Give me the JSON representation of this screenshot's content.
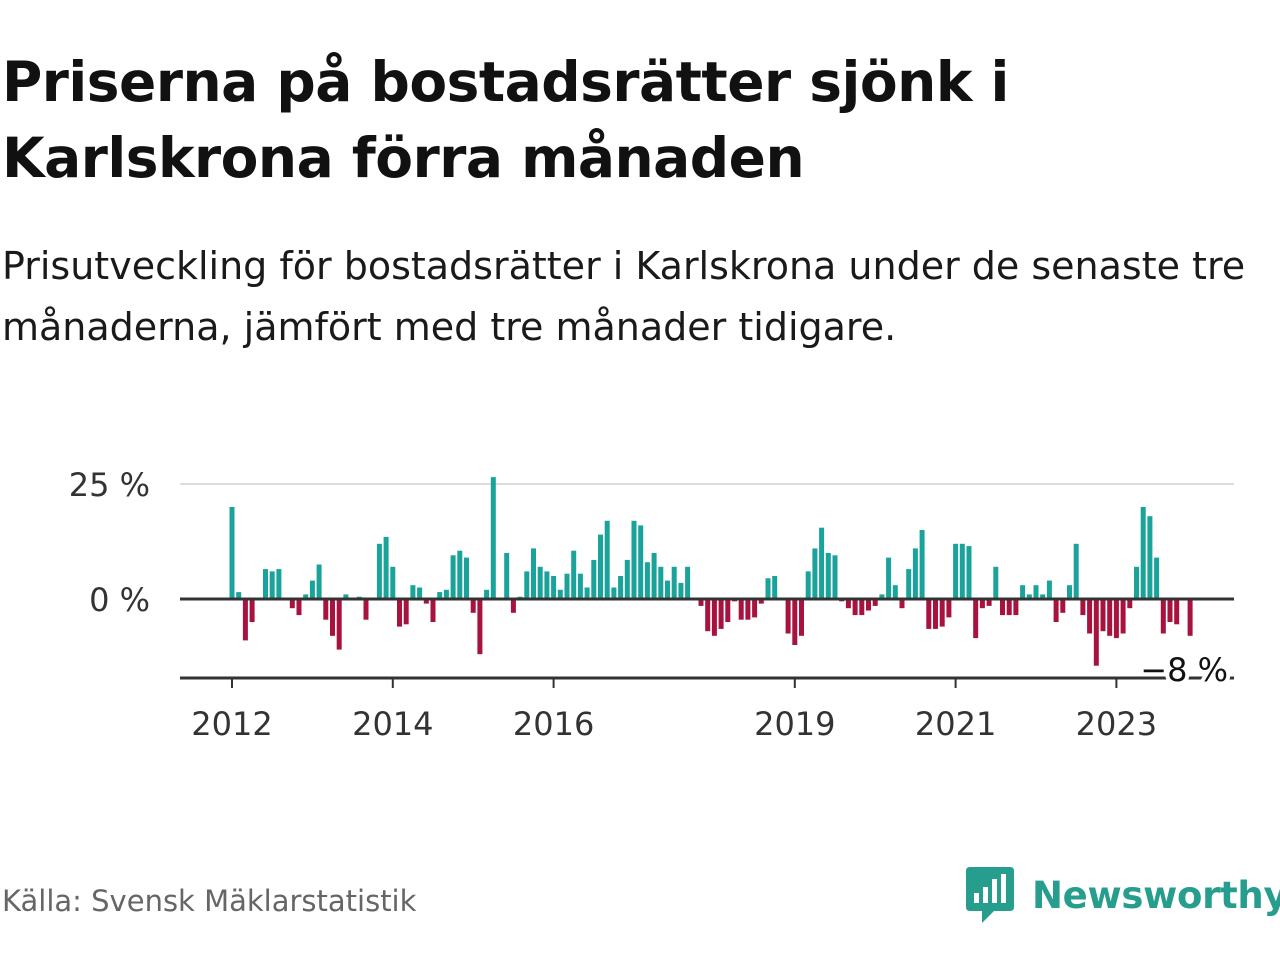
{
  "title": "Priserna på bostadsrätter sjönk i Karlskrona förra månaden",
  "subtitle": "Prisutveckling för bostadsrätter i Karlskrona under de senaste tre månaderna, jämfört med tre månader tidigare.",
  "source": "Källa: Svensk Mäklarstatistik",
  "logo": {
    "text": "Newsworthy",
    "icon": "newsworthy-bar-chart-icon",
    "color": "#279d8d"
  },
  "colors": {
    "positive": "#1aa39a",
    "negative": "#a8123e",
    "axis": "#333333",
    "grid": "#dddddd"
  },
  "chart_data": {
    "type": "bar",
    "title": "Priserna på bostadsrätter sjönk i Karlskrona förra månaden",
    "xlabel": "",
    "ylabel": "",
    "ylim": [
      -17,
      25
    ],
    "yticks": [
      {
        "value": 25,
        "label": "25 %"
      },
      {
        "value": 0,
        "label": "0 %"
      }
    ],
    "xticks": [
      {
        "index": 0,
        "label": "2012"
      },
      {
        "index": 24,
        "label": "2014"
      },
      {
        "index": 48,
        "label": "2016"
      },
      {
        "index": 84,
        "label": "2019"
      },
      {
        "index": 108,
        "label": "2021"
      },
      {
        "index": 132,
        "label": "2023"
      }
    ],
    "start": "2012-01",
    "frequency": "monthly",
    "grid": true,
    "annotation": {
      "text": "−8 %",
      "index": 142
    },
    "values": [
      20,
      1.5,
      -9,
      -5,
      0,
      6.5,
      6,
      6.5,
      0,
      -2,
      -3.5,
      1,
      4,
      7.5,
      -4.5,
      -8,
      -11,
      1,
      0,
      0.5,
      -4.5,
      0,
      12,
      13.5,
      7,
      -6,
      -5.5,
      3,
      2.5,
      -1,
      -5,
      1.5,
      2,
      9.5,
      10.5,
      9,
      -3,
      -12,
      2,
      26.5,
      0,
      10,
      -3,
      0.5,
      6,
      11,
      7,
      6,
      5,
      2,
      5.5,
      10.5,
      5.5,
      2.5,
      8.5,
      14,
      17,
      2.5,
      5,
      8.5,
      17,
      16,
      8,
      10,
      7,
      4,
      7,
      3.5,
      7,
      0,
      -1.5,
      -7,
      -8,
      -6.5,
      -5,
      -0.5,
      -4.5,
      -4.5,
      -4,
      -1,
      4.5,
      5,
      0,
      -7.5,
      -10,
      -8,
      6,
      11,
      15.5,
      10,
      9.5,
      -0.5,
      -2,
      -3.5,
      -3.5,
      -2.5,
      -1.5,
      1,
      9,
      3,
      -2,
      6.5,
      11,
      15,
      -6.5,
      -6.5,
      -6,
      -4,
      12,
      12,
      11.5,
      -8.5,
      -2,
      -1.5,
      7,
      -3.5,
      -3.5,
      -3.5,
      3,
      1,
      3,
      1,
      4,
      -5,
      -3,
      3,
      12,
      -3.5,
      -7.5,
      -14.5,
      -7,
      -8,
      -8.5,
      -7.5,
      -2,
      7,
      20,
      18,
      9,
      -7.5,
      -5,
      -5.5,
      0,
      -8
    ]
  }
}
